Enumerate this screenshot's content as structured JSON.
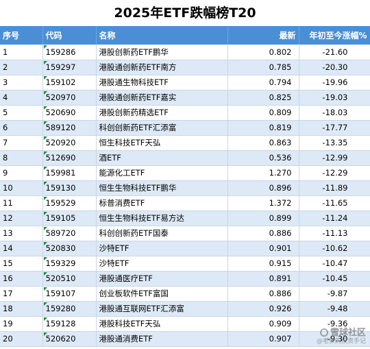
{
  "title": "2025年ETF跌幅榜T20",
  "columns": {
    "index": "序号",
    "code": "代码",
    "name": "名称",
    "latest": "最新",
    "ytd": "年初至今涨幅%"
  },
  "rows": [
    {
      "index": "1",
      "code": "159286",
      "name": "港股创新药ETF鹏华",
      "latest": "0.802",
      "ytd": "-21.60"
    },
    {
      "index": "2",
      "code": "159297",
      "name": "港股通创新药ETF南方",
      "latest": "0.785",
      "ytd": "-20.30"
    },
    {
      "index": "3",
      "code": "159102",
      "name": "港股通生物科技ETF",
      "latest": "0.794",
      "ytd": "-19.96"
    },
    {
      "index": "4",
      "code": "520970",
      "name": "港股通创新药ETF嘉实",
      "latest": "0.825",
      "ytd": "-19.03"
    },
    {
      "index": "5",
      "code": "520690",
      "name": "港股创新药精选ETF",
      "latest": "0.809",
      "ytd": "-18.03"
    },
    {
      "index": "6",
      "code": "589120",
      "name": "科创创新药ETF汇添富",
      "latest": "0.819",
      "ytd": "-17.77"
    },
    {
      "index": "7",
      "code": "520920",
      "name": "恒生科技ETF天弘",
      "latest": "0.863",
      "ytd": "-13.35"
    },
    {
      "index": "8",
      "code": "512690",
      "name": "酒ETF",
      "latest": "0.536",
      "ytd": "-12.99"
    },
    {
      "index": "9",
      "code": "159981",
      "name": "能源化工ETF",
      "latest": "1.270",
      "ytd": "-12.29"
    },
    {
      "index": "10",
      "code": "159130",
      "name": "恒生生物科技ETF鹏华",
      "latest": "0.896",
      "ytd": "-11.89"
    },
    {
      "index": "11",
      "code": "159529",
      "name": "标普消费ETF",
      "latest": "1.372",
      "ytd": "-11.65"
    },
    {
      "index": "12",
      "code": "159105",
      "name": "恒生生物科技ETF易方达",
      "latest": "0.899",
      "ytd": "-11.24"
    },
    {
      "index": "13",
      "code": "589720",
      "name": "科创创新药ETF国泰",
      "latest": "0.886",
      "ytd": "-11.13"
    },
    {
      "index": "14",
      "code": "520830",
      "name": "沙特ETF",
      "latest": "0.901",
      "ytd": "-10.62"
    },
    {
      "index": "15",
      "code": "159329",
      "name": "沙特ETF",
      "latest": "0.915",
      "ytd": "-10.47"
    },
    {
      "index": "16",
      "code": "520510",
      "name": "港股通医疗ETF",
      "latest": "0.891",
      "ytd": "-10.45"
    },
    {
      "index": "17",
      "code": "159107",
      "name": "创业板软件ETF富国",
      "latest": "0.886",
      "ytd": "-9.87"
    },
    {
      "index": "18",
      "code": "159280",
      "name": "港股通互联网ETF汇添富",
      "latest": "0.926",
      "ytd": "-9.48"
    },
    {
      "index": "19",
      "code": "159128",
      "name": "港股科技ETF天弘",
      "latest": "0.909",
      "ytd": "-9.36"
    },
    {
      "index": "20",
      "code": "520620",
      "name": "港股通消费ETF",
      "latest": "0.907",
      "ytd": "-9.30"
    }
  ],
  "watermark": {
    "main": "雪球社区",
    "sub": "@老张的投资手记"
  },
  "colors": {
    "header_bg": "#4a8fd6",
    "row_alt_bg": "#dde9f6",
    "code_marker": "#1f8a3a"
  }
}
